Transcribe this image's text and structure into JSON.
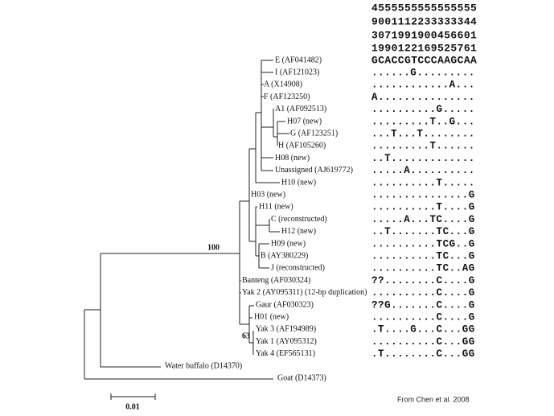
{
  "header_rows": [
    "4555555555555555",
    "9001112233333344",
    "3071991900456601",
    "1990122169525761"
  ],
  "taxa": [
    {
      "label": "E (AF041482)",
      "sequence": "GCACCGTCCCAAGCAA"
    },
    {
      "label": "I (AF121023)",
      "sequence": "......G........."
    },
    {
      "label": "A (X14908)",
      "sequence": "............A..."
    },
    {
      "label": "F (AF123250)",
      "sequence": "A..............."
    },
    {
      "label": "A1 (AF092513)",
      "sequence": "..........G....."
    },
    {
      "label": "H07 (new)",
      "sequence": ".........T..G..."
    },
    {
      "label": "G (AF123251)",
      "sequence": "...T...T........"
    },
    {
      "label": "H (AF105260)",
      "sequence": ".........T......"
    },
    {
      "label": "H08 (new)",
      "sequence": "..T............."
    },
    {
      "label": "Unassigned (AJ619772)",
      "sequence": ".....A.........."
    },
    {
      "label": "H10 (new)",
      "sequence": "..........T....."
    },
    {
      "label": "H03 (new)",
      "sequence": "...............G"
    },
    {
      "label": "H11 (new)",
      "sequence": "..........T....G"
    },
    {
      "label": "C (reconstructed)",
      "sequence": ".....A...TC....G"
    },
    {
      "label": "H12 (new)",
      "sequence": "..T.......TC...G"
    },
    {
      "label": "H09 (new)",
      "sequence": "..........TCG..G"
    },
    {
      "label": "B (AY380229)",
      "sequence": "..........TC...G"
    },
    {
      "label": "J (reconstructed)",
      "sequence": "..........TC..AG"
    },
    {
      "label": "Banteng (AF030324)",
      "sequence": "??........C....G"
    },
    {
      "label": "Yak 2 (AY095311) (12-bp duplication)",
      "sequence": "..........C....G"
    },
    {
      "label": "Gaur (AF030323)",
      "sequence": "??G.......C....G"
    },
    {
      "label": "H01 (new)",
      "sequence": "..........C....G"
    },
    {
      "label": "Yak 3 (AF194989)",
      "sequence": ".T....G...C...GG"
    },
    {
      "label": "Yak 1 (AY095312)",
      "sequence": "..........C...GG"
    },
    {
      "label": "Yak 4 (EF565131)",
      "sequence": ".T........C...GG"
    },
    {
      "label": "Water buffalo (D14370)"
    },
    {
      "label": "Goat (D14373)"
    }
  ],
  "bootstrap": [
    "100",
    "63"
  ],
  "scale_bar": "0.01",
  "credit": "From Chen et al. 2008"
}
